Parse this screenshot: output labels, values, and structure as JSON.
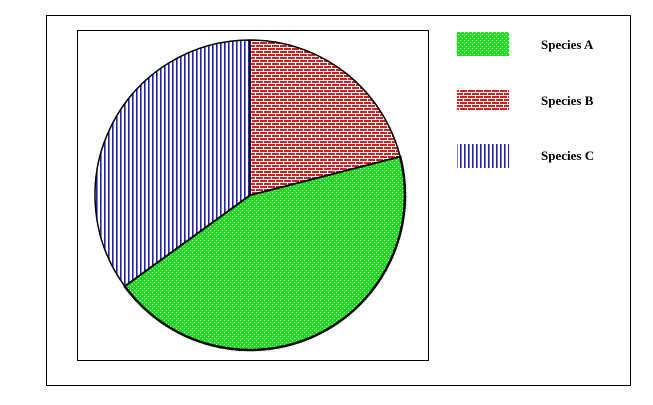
{
  "chart_data": {
    "type": "pie",
    "title": "",
    "categories": [
      "Species A",
      "Species B",
      "Species C"
    ],
    "values": [
      44,
      21,
      35
    ],
    "series": [
      {
        "values": [
          44,
          21,
          35
        ]
      }
    ],
    "legend": {
      "placement": "top-right",
      "entries": [
        {
          "label": "Species A",
          "pattern": "dots",
          "color": "#00e600"
        },
        {
          "label": "Species B",
          "pattern": "brick",
          "color": "#cc2222"
        },
        {
          "label": "Species C",
          "pattern": "vertical-lines",
          "color": "#2222aa"
        }
      ]
    },
    "colors": {
      "species_a": "#00e600",
      "species_b": "#cc2222",
      "species_c": "#2222aa",
      "outline": "#000000",
      "background": "#ffffff"
    },
    "grid": false
  }
}
